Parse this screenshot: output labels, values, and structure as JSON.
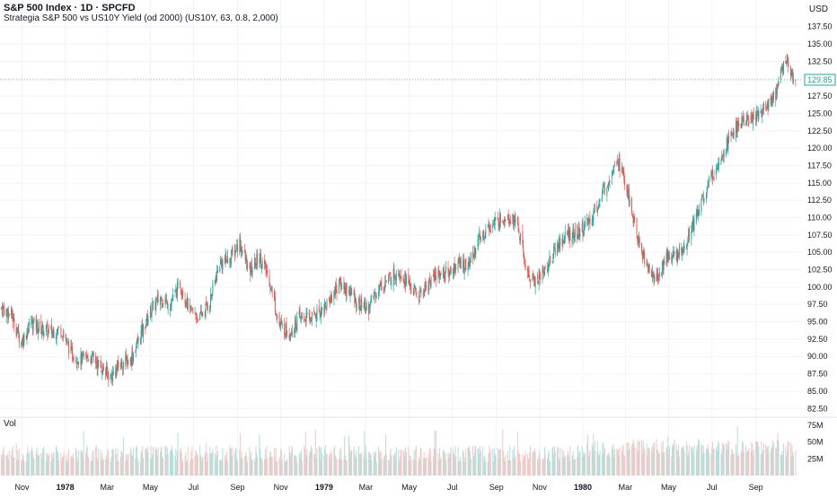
{
  "header": {
    "title": "S&P 500 Index · 1D · SPCFD",
    "subtitle": "Strategia S&P 500 vs US10Y Yield (od 2000) (US10Y, 63, 0.8, 2,000)",
    "currency": "USD"
  },
  "volume_label": "Vol",
  "colors": {
    "up": "#26a69a",
    "down": "#ef5350",
    "up_vol": "#b2dfdb",
    "down_vol": "#f7c6c5",
    "axis_text": "#131722",
    "grid": "#f0f3fa",
    "last_price": "#26a69a"
  },
  "chart_data": {
    "type": "candlestick",
    "price_axis": {
      "ticks": [
        "82.50",
        "85.00",
        "87.50",
        "90.00",
        "92.50",
        "95.00",
        "97.50",
        "100.00",
        "102.50",
        "105.00",
        "107.50",
        "110.00",
        "112.50",
        "115.00",
        "117.50",
        "120.00",
        "122.50",
        "125.00",
        "127.50",
        "130.00",
        "132.50",
        "135.00",
        "137.50"
      ],
      "range": [
        81.5,
        138.5
      ]
    },
    "last_price": "129.85",
    "volume_axis": {
      "ticks": [
        "25M",
        "50M",
        "75M"
      ],
      "max": 80
    },
    "time_axis": {
      "labels": [
        {
          "text": "Nov",
          "bold": false,
          "x": "1977-11"
        },
        {
          "text": "1978",
          "bold": true,
          "x": "1978-01"
        },
        {
          "text": "Mar",
          "bold": false,
          "x": "1978-03"
        },
        {
          "text": "May",
          "bold": false,
          "x": "1978-05"
        },
        {
          "text": "Jul",
          "bold": false,
          "x": "1978-07"
        },
        {
          "text": "Sep",
          "bold": false,
          "x": "1978-09"
        },
        {
          "text": "Nov",
          "bold": false,
          "x": "1978-11"
        },
        {
          "text": "1979",
          "bold": true,
          "x": "1979-01"
        },
        {
          "text": "Mar",
          "bold": false,
          "x": "1979-03"
        },
        {
          "text": "May",
          "bold": false,
          "x": "1979-05"
        },
        {
          "text": "Jul",
          "bold": false,
          "x": "1979-07"
        },
        {
          "text": "Sep",
          "bold": false,
          "x": "1979-09"
        },
        {
          "text": "Nov",
          "bold": false,
          "x": "1979-11"
        },
        {
          "text": "1980",
          "bold": true,
          "x": "1980-01"
        },
        {
          "text": "Mar",
          "bold": false,
          "x": "1980-03"
        },
        {
          "text": "May",
          "bold": false,
          "x": "1980-05"
        },
        {
          "text": "Jul",
          "bold": false,
          "x": "1980-07"
        },
        {
          "text": "Sep",
          "bold": false,
          "x": "1980-09"
        }
      ]
    },
    "close_series": [
      {
        "d": "1977-10-03",
        "v": 97.0
      },
      {
        "d": "1977-10-17",
        "v": 96.0
      },
      {
        "d": "1977-10-31",
        "v": 92.0
      },
      {
        "d": "1977-11-14",
        "v": 95.0
      },
      {
        "d": "1977-11-28",
        "v": 94.0
      },
      {
        "d": "1977-12-12",
        "v": 93.5
      },
      {
        "d": "1977-12-26",
        "v": 94.0
      },
      {
        "d": "1978-01-09",
        "v": 90.5
      },
      {
        "d": "1978-01-23",
        "v": 89.5
      },
      {
        "d": "1978-02-06",
        "v": 90.0
      },
      {
        "d": "1978-02-20",
        "v": 88.5
      },
      {
        "d": "1978-03-06",
        "v": 87.0
      },
      {
        "d": "1978-03-20",
        "v": 89.0
      },
      {
        "d": "1978-04-03",
        "v": 89.5
      },
      {
        "d": "1978-04-17",
        "v": 93.0
      },
      {
        "d": "1978-05-01",
        "v": 96.5
      },
      {
        "d": "1978-05-15",
        "v": 98.5
      },
      {
        "d": "1978-05-29",
        "v": 97.5
      },
      {
        "d": "1978-06-12",
        "v": 100.5
      },
      {
        "d": "1978-06-26",
        "v": 96.5
      },
      {
        "d": "1978-07-10",
        "v": 95.5
      },
      {
        "d": "1978-07-24",
        "v": 98.0
      },
      {
        "d": "1978-08-07",
        "v": 103.5
      },
      {
        "d": "1978-08-21",
        "v": 104.0
      },
      {
        "d": "1978-09-04",
        "v": 106.5
      },
      {
        "d": "1978-09-18",
        "v": 102.0
      },
      {
        "d": "1978-10-02",
        "v": 104.5
      },
      {
        "d": "1978-10-16",
        "v": 101.0
      },
      {
        "d": "1978-10-30",
        "v": 94.5
      },
      {
        "d": "1978-11-13",
        "v": 93.5
      },
      {
        "d": "1978-11-27",
        "v": 95.5
      },
      {
        "d": "1978-12-11",
        "v": 95.5
      },
      {
        "d": "1978-12-25",
        "v": 96.5
      },
      {
        "d": "1979-01-08",
        "v": 98.0
      },
      {
        "d": "1979-01-22",
        "v": 100.5
      },
      {
        "d": "1979-02-05",
        "v": 99.5
      },
      {
        "d": "1979-02-19",
        "v": 97.5
      },
      {
        "d": "1979-03-05",
        "v": 97.0
      },
      {
        "d": "1979-03-19",
        "v": 100.0
      },
      {
        "d": "1979-04-02",
        "v": 101.0
      },
      {
        "d": "1979-04-16",
        "v": 102.5
      },
      {
        "d": "1979-04-30",
        "v": 100.5
      },
      {
        "d": "1979-05-14",
        "v": 98.5
      },
      {
        "d": "1979-05-28",
        "v": 100.5
      },
      {
        "d": "1979-06-11",
        "v": 102.0
      },
      {
        "d": "1979-06-25",
        "v": 102.0
      },
      {
        "d": "1979-07-09",
        "v": 103.5
      },
      {
        "d": "1979-07-23",
        "v": 103.0
      },
      {
        "d": "1979-08-06",
        "v": 106.5
      },
      {
        "d": "1979-08-20",
        "v": 108.5
      },
      {
        "d": "1979-09-03",
        "v": 109.5
      },
      {
        "d": "1979-09-17",
        "v": 110.5
      },
      {
        "d": "1979-10-01",
        "v": 109.0
      },
      {
        "d": "1979-10-15",
        "v": 101.5
      },
      {
        "d": "1979-10-29",
        "v": 101.0
      },
      {
        "d": "1979-11-12",
        "v": 103.0
      },
      {
        "d": "1979-11-26",
        "v": 106.0
      },
      {
        "d": "1979-12-10",
        "v": 107.5
      },
      {
        "d": "1979-12-24",
        "v": 107.5
      },
      {
        "d": "1980-01-07",
        "v": 109.0
      },
      {
        "d": "1980-01-21",
        "v": 111.5
      },
      {
        "d": "1980-02-04",
        "v": 115.0
      },
      {
        "d": "1980-02-18",
        "v": 119.0
      },
      {
        "d": "1980-03-03",
        "v": 114.0
      },
      {
        "d": "1980-03-17",
        "v": 107.5
      },
      {
        "d": "1980-03-31",
        "v": 103.0
      },
      {
        "d": "1980-04-14",
        "v": 101.0
      },
      {
        "d": "1980-04-28",
        "v": 104.5
      },
      {
        "d": "1980-05-12",
        "v": 104.5
      },
      {
        "d": "1980-05-26",
        "v": 106.5
      },
      {
        "d": "1980-06-09",
        "v": 110.5
      },
      {
        "d": "1980-06-23",
        "v": 114.0
      },
      {
        "d": "1980-07-07",
        "v": 117.5
      },
      {
        "d": "1980-07-21",
        "v": 120.5
      },
      {
        "d": "1980-08-04",
        "v": 123.0
      },
      {
        "d": "1980-08-18",
        "v": 124.0
      },
      {
        "d": "1980-09-01",
        "v": 124.5
      },
      {
        "d": "1980-09-15",
        "v": 126.0
      },
      {
        "d": "1980-09-29",
        "v": 128.0
      },
      {
        "d": "1980-10-13",
        "v": 133.0
      },
      {
        "d": "1980-10-27",
        "v": 129.85
      }
    ],
    "date_range": [
      "1977-10-01",
      "1980-11-05"
    ]
  }
}
